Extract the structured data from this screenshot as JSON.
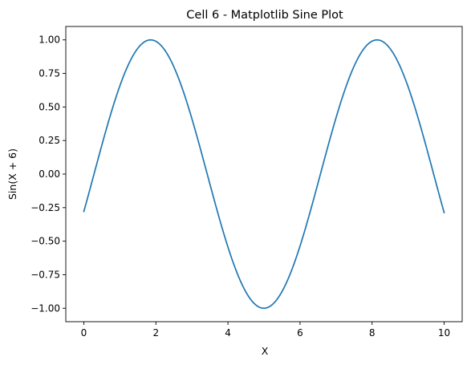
{
  "chart_data": {
    "type": "line",
    "title": "Cell 6 - Matplotlib Sine Plot",
    "xlabel": "X",
    "ylabel": "Sin(X + 6)",
    "function": "sin(x + 6)",
    "x_range": [
      0,
      10
    ],
    "xlim": [
      -0.5,
      10.5
    ],
    "ylim": [
      -1.1,
      1.1
    ],
    "x_ticks": [
      0,
      2,
      4,
      6,
      8,
      10
    ],
    "x_tick_labels": [
      "0",
      "2",
      "4",
      "6",
      "8",
      "10"
    ],
    "y_ticks": [
      -1.0,
      -0.75,
      -0.5,
      -0.25,
      0.0,
      0.25,
      0.5,
      0.75,
      1.0
    ],
    "y_tick_labels": [
      "−1.00",
      "−0.75",
      "−0.50",
      "−0.25",
      "0.00",
      "0.25",
      "0.50",
      "0.75",
      "1.00"
    ],
    "grid": false,
    "legend": "none",
    "series": [
      {
        "color": "#1f77b4",
        "x": [
          0,
          0.5,
          1,
          1.5,
          1.85,
          2,
          2.5,
          3,
          3.5,
          4,
          4.5,
          5,
          5.5,
          6,
          6.5,
          7,
          7.5,
          8,
          8.14,
          8.5,
          9,
          9.5,
          10
        ],
        "y": [
          -0.279,
          0.215,
          0.657,
          0.938,
          1.0,
          0.989,
          0.798,
          0.412,
          -0.075,
          -0.537,
          -0.88,
          -1.0,
          -0.876,
          -0.536,
          -0.073,
          0.42,
          0.804,
          0.991,
          1.0,
          0.937,
          0.65,
          0.206,
          -0.288
        ]
      }
    ],
    "colors": {
      "line": "#1f77b4",
      "axes": "#000000",
      "background": "#ffffff"
    }
  }
}
